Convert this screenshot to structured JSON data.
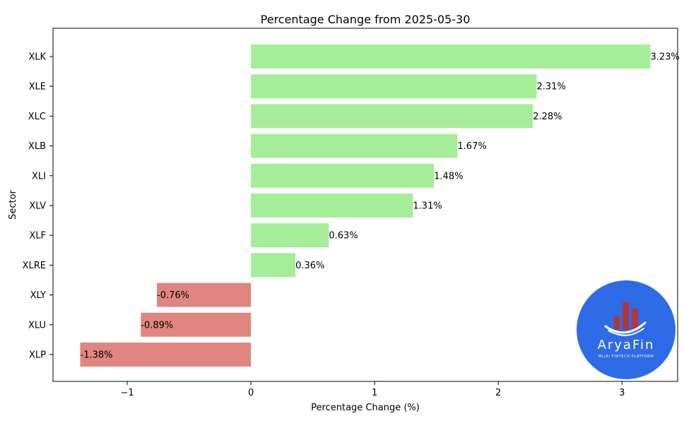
{
  "chart_data": {
    "type": "bar",
    "orientation": "horizontal",
    "title": "Percentage Change from 2025-05-30",
    "xlabel": "Percentage Change (%)",
    "ylabel": "Sector",
    "xlim": [
      -1.6,
      3.45
    ],
    "xticks": [
      -1,
      0,
      1,
      2,
      3
    ],
    "xtick_labels": [
      "−1",
      "0",
      "1",
      "2",
      "3"
    ],
    "grid": false,
    "categories": [
      "XLK",
      "XLE",
      "XLC",
      "XLB",
      "XLI",
      "XLV",
      "XLF",
      "XLRE",
      "XLY",
      "XLU",
      "XLP"
    ],
    "values": [
      3.23,
      2.31,
      2.28,
      1.67,
      1.48,
      1.31,
      0.63,
      0.36,
      -0.76,
      -0.89,
      -1.38
    ],
    "data_labels": [
      "3.23%",
      "2.31%",
      "2.28%",
      "1.67%",
      "1.48%",
      "1.31%",
      "0.63%",
      "0.36%",
      "-0.76%",
      "-0.89%",
      "-1.38%"
    ],
    "colors": {
      "positive": "#a6ed99",
      "negative": "#e08580"
    }
  },
  "logo": {
    "name": "AryaFin",
    "tagline": "ML/AI FINTECH PLATFORM",
    "bg_color": "#2e6be6",
    "accent_color": "#b0383a"
  }
}
